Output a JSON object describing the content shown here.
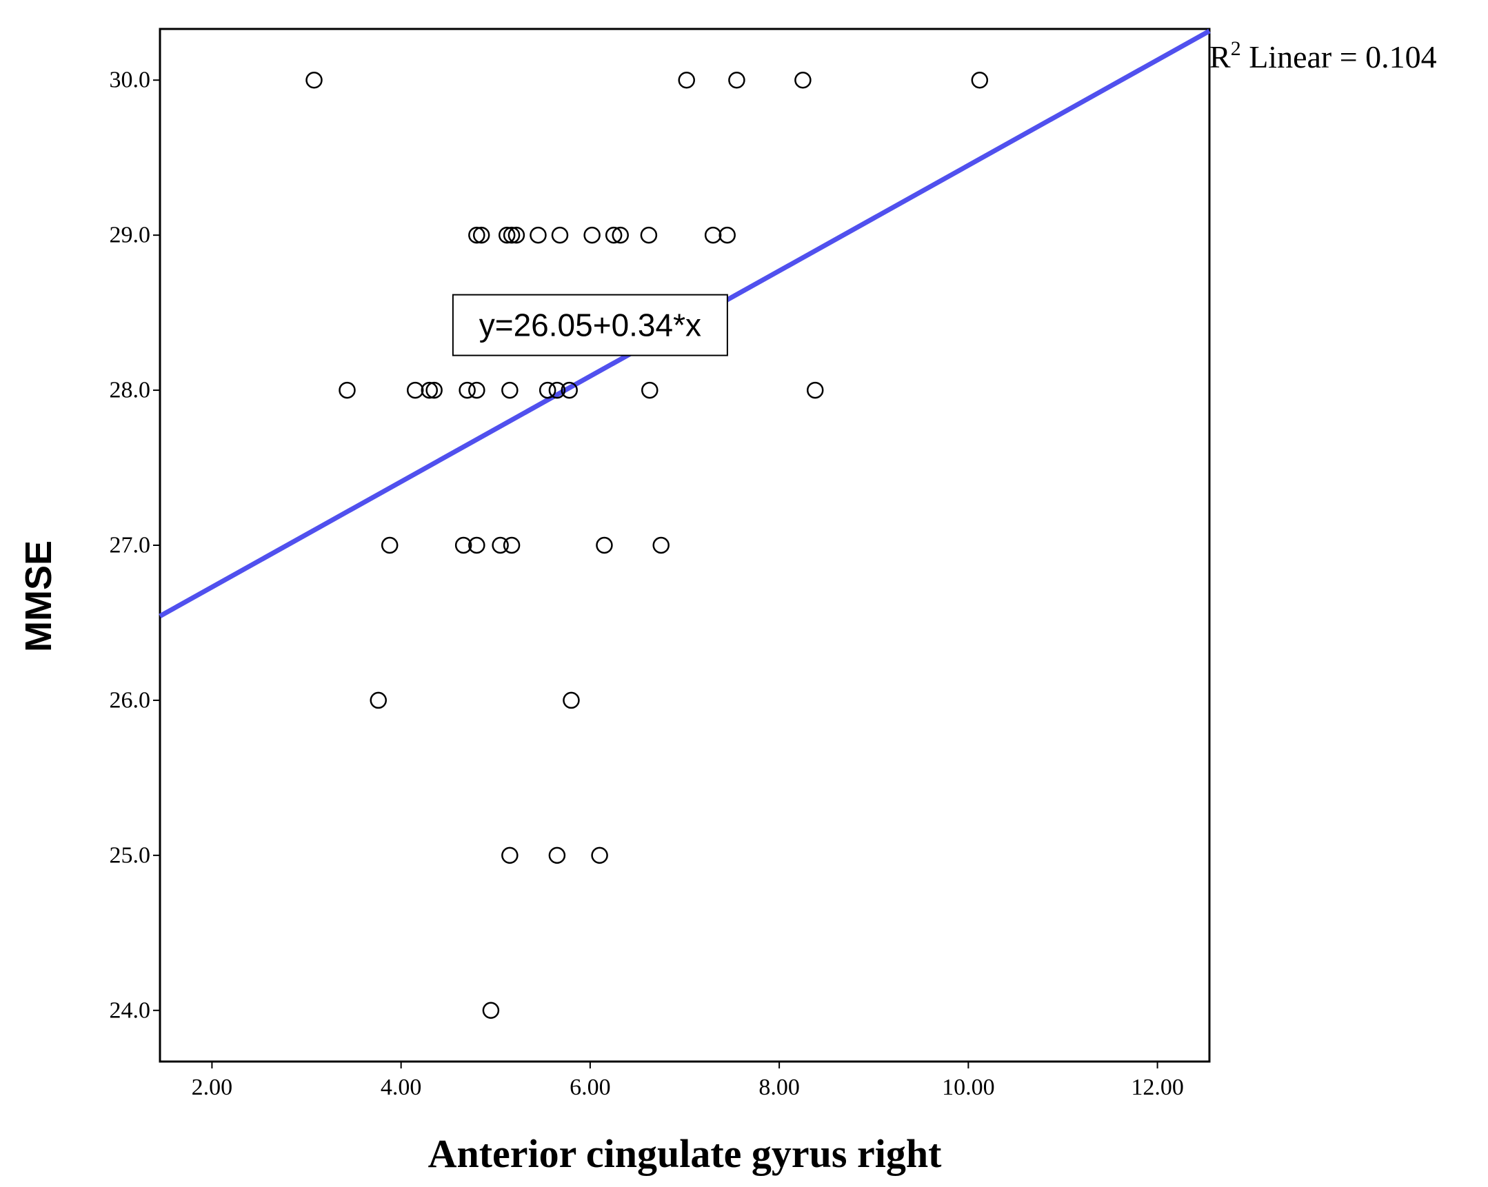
{
  "chart_data": {
    "type": "scatter",
    "xlabel": "Anterior cingulate gyrus right",
    "ylabel": "MMSE",
    "xlim": [
      1.45,
      12.55
    ],
    "ylim": [
      23.67,
      30.33
    ],
    "x_ticks": [
      "2.00",
      "4.00",
      "6.00",
      "8.00",
      "10.00",
      "12.00"
    ],
    "x_tick_values": [
      2,
      4,
      6,
      8,
      10,
      12
    ],
    "y_ticks": [
      "24.0",
      "25.0",
      "26.0",
      "27.0",
      "28.0",
      "29.0",
      "30.0"
    ],
    "y_tick_values": [
      24,
      25,
      26,
      27,
      28,
      29,
      30
    ],
    "grid": false,
    "points": [
      {
        "x": 3.08,
        "y": 30.0
      },
      {
        "x": 7.02,
        "y": 30.0
      },
      {
        "x": 7.55,
        "y": 30.0
      },
      {
        "x": 8.25,
        "y": 30.0
      },
      {
        "x": 10.12,
        "y": 30.0
      },
      {
        "x": 4.8,
        "y": 29.0
      },
      {
        "x": 4.85,
        "y": 29.0
      },
      {
        "x": 5.12,
        "y": 29.0
      },
      {
        "x": 5.17,
        "y": 29.0
      },
      {
        "x": 5.22,
        "y": 29.0
      },
      {
        "x": 5.45,
        "y": 29.0
      },
      {
        "x": 5.68,
        "y": 29.0
      },
      {
        "x": 6.02,
        "y": 29.0
      },
      {
        "x": 6.25,
        "y": 29.0
      },
      {
        "x": 6.32,
        "y": 29.0
      },
      {
        "x": 6.62,
        "y": 29.0
      },
      {
        "x": 7.3,
        "y": 29.0
      },
      {
        "x": 7.45,
        "y": 29.0
      },
      {
        "x": 3.43,
        "y": 28.0
      },
      {
        "x": 4.15,
        "y": 28.0
      },
      {
        "x": 4.3,
        "y": 28.0
      },
      {
        "x": 4.35,
        "y": 28.0
      },
      {
        "x": 4.7,
        "y": 28.0
      },
      {
        "x": 4.8,
        "y": 28.0
      },
      {
        "x": 5.15,
        "y": 28.0
      },
      {
        "x": 5.55,
        "y": 28.0
      },
      {
        "x": 5.65,
        "y": 28.0
      },
      {
        "x": 5.78,
        "y": 28.0
      },
      {
        "x": 6.63,
        "y": 28.0
      },
      {
        "x": 8.38,
        "y": 28.0
      },
      {
        "x": 3.88,
        "y": 27.0
      },
      {
        "x": 4.66,
        "y": 27.0
      },
      {
        "x": 4.8,
        "y": 27.0
      },
      {
        "x": 5.05,
        "y": 27.0
      },
      {
        "x": 5.17,
        "y": 27.0
      },
      {
        "x": 6.15,
        "y": 27.0
      },
      {
        "x": 6.75,
        "y": 27.0
      },
      {
        "x": 3.76,
        "y": 26.0
      },
      {
        "x": 5.8,
        "y": 26.0
      },
      {
        "x": 5.15,
        "y": 25.0
      },
      {
        "x": 5.65,
        "y": 25.0
      },
      {
        "x": 6.1,
        "y": 25.0
      },
      {
        "x": 4.95,
        "y": 24.0
      }
    ],
    "fit_line": {
      "intercept": 26.05,
      "slope": 0.34,
      "color": "#5050ee"
    },
    "equation_label": "y=26.05+0.34*x",
    "equation_anchor": {
      "x": 6.0,
      "y": 28.42
    },
    "r_squared": {
      "prefix": "R",
      "sup": "2",
      "text": " Linear = 0.104"
    }
  }
}
